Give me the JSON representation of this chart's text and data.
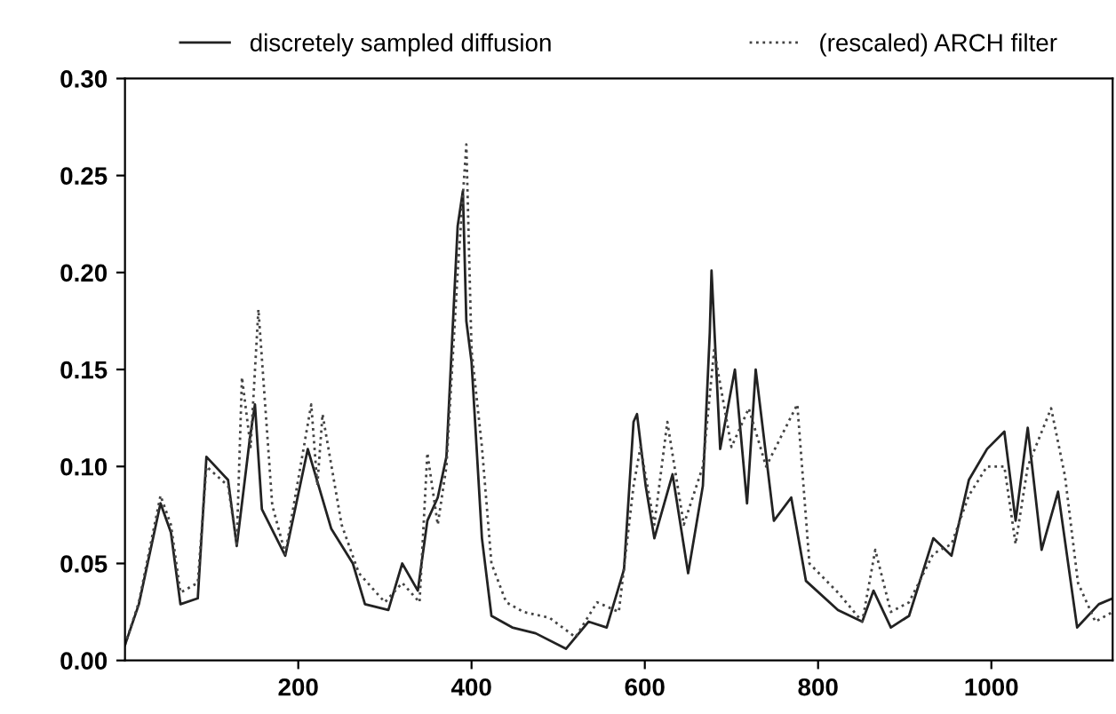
{
  "chart_data": {
    "type": "line",
    "xlim": [
      0,
      1140
    ],
    "ylim": [
      0,
      0.3
    ],
    "xticks": [
      200,
      400,
      600,
      800,
      1000
    ],
    "yticks": [
      {
        "value": 0,
        "label": "0.00"
      },
      {
        "value": 0.05,
        "label": "0.05"
      },
      {
        "value": 0.1,
        "label": "0.10"
      },
      {
        "value": 0.15,
        "label": "0.15"
      },
      {
        "value": 0.2,
        "label": "0.20"
      },
      {
        "value": 0.25,
        "label": "0.25"
      },
      {
        "value": 0.3,
        "label": "0.30"
      }
    ],
    "grid": false,
    "legend": "top",
    "marker": "none",
    "series": [
      {
        "name": "discretely sampled diffusion",
        "color": "#222222",
        "line_style": "solid",
        "x": [
          0,
          16,
          41,
          53,
          64,
          84,
          94,
          119,
          129,
          144,
          150,
          158,
          185,
          211,
          238,
          263,
          277,
          304,
          320,
          338,
          349,
          361,
          371,
          384,
          390,
          394,
          400,
          412,
          423,
          447,
          474,
          509,
          535,
          556,
          576,
          587,
          591,
          601,
          611,
          632,
          650,
          667,
          675,
          677,
          687,
          704,
          718,
          728,
          749,
          769,
          786,
          823,
          851,
          864,
          884,
          905,
          933,
          954,
          974,
          995,
          1015,
          1028,
          1042,
          1058,
          1077,
          1099,
          1124,
          1140
        ],
        "values": [
          0.008,
          0.029,
          0.081,
          0.066,
          0.029,
          0.032,
          0.105,
          0.093,
          0.059,
          0.114,
          0.132,
          0.078,
          0.054,
          0.109,
          0.068,
          0.05,
          0.029,
          0.026,
          0.05,
          0.036,
          0.072,
          0.084,
          0.105,
          0.224,
          0.242,
          0.175,
          0.154,
          0.063,
          0.023,
          0.017,
          0.014,
          0.006,
          0.02,
          0.017,
          0.047,
          0.123,
          0.127,
          0.09,
          0.063,
          0.096,
          0.045,
          0.09,
          0.169,
          0.201,
          0.109,
          0.15,
          0.081,
          0.15,
          0.072,
          0.084,
          0.041,
          0.026,
          0.02,
          0.036,
          0.017,
          0.023,
          0.063,
          0.054,
          0.093,
          0.109,
          0.118,
          0.072,
          0.12,
          0.057,
          0.087,
          0.017,
          0.029,
          0.032
        ]
      },
      {
        "name": "(rescaled) ARCH filter",
        "color": "#444444",
        "line_style": "dotted",
        "x": [
          0,
          16,
          41,
          53,
          64,
          84,
          94,
          119,
          129,
          135,
          145,
          154,
          170,
          185,
          215,
          222,
          228,
          250,
          270,
          300,
          320,
          340,
          349,
          361,
          371,
          384,
          394,
          400,
          412,
          423,
          440,
          460,
          490,
          520,
          545,
          570,
          587,
          595,
          611,
          626,
          645,
          667,
          680,
          700,
          720,
          740,
          776,
          790,
          823,
          851,
          866,
          884,
          905,
          933,
          954,
          974,
          995,
          1015,
          1028,
          1042,
          1069,
          1085,
          1100,
          1120,
          1140
        ],
        "values": [
          0.008,
          0.03,
          0.085,
          0.07,
          0.035,
          0.04,
          0.1,
          0.09,
          0.06,
          0.146,
          0.11,
          0.181,
          0.08,
          0.055,
          0.132,
          0.09,
          0.127,
          0.07,
          0.045,
          0.03,
          0.04,
          0.03,
          0.107,
          0.07,
          0.1,
          0.2,
          0.266,
          0.16,
          0.11,
          0.05,
          0.03,
          0.025,
          0.022,
          0.012,
          0.03,
          0.025,
          0.09,
          0.11,
          0.07,
          0.123,
          0.07,
          0.1,
          0.16,
          0.11,
          0.13,
          0.1,
          0.132,
          0.05,
          0.035,
          0.02,
          0.057,
          0.025,
          0.03,
          0.055,
          0.06,
          0.085,
          0.1,
          0.1,
          0.06,
          0.1,
          0.13,
          0.095,
          0.04,
          0.02,
          0.025
        ]
      }
    ]
  }
}
